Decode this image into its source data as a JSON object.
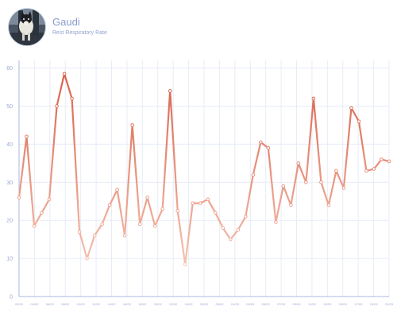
{
  "profile": {
    "name": "Gaudi",
    "subtitle": "Rest Respiratory Rate",
    "avatar_icon": "dog-photo"
  },
  "colors": {
    "low": "#f7c9b8",
    "high": "#d9634c",
    "grid": "#e7ecf7",
    "axis": "#aab8e0",
    "text": "#8a9bd0"
  },
  "chart_data": {
    "type": "line",
    "title": "",
    "xlabel": "",
    "ylabel": "",
    "ylim": [
      0,
      62
    ],
    "yticks": [
      0,
      10,
      20,
      30,
      40,
      50,
      60
    ],
    "grid": true,
    "x_tick_labels": [
      "02/02",
      "04/02",
      "06/02",
      "08/02",
      "10/02",
      "12/02",
      "14/02",
      "16/02",
      "18/02",
      "20/02",
      "22/02",
      "24/02",
      "26/02",
      "28/02",
      "01/03",
      "03/03",
      "05/03",
      "07/03",
      "09/03",
      "11/03",
      "13/03",
      "15/03",
      "17/03",
      "19/03",
      "21/03"
    ],
    "series": [
      {
        "name": "",
        "values": [
          26,
          42,
          18.5,
          22,
          25.5,
          50,
          58.5,
          52,
          17,
          10,
          16,
          19,
          24,
          28,
          16,
          45,
          19,
          26,
          18.5,
          23,
          54,
          22.5,
          8.5,
          24.5,
          24.5,
          25.5,
          22,
          18,
          15,
          17.5,
          21,
          32,
          40.5,
          39,
          19.5,
          29,
          24,
          35,
          30,
          52,
          30,
          24,
          33,
          28.5,
          49.5,
          46,
          33,
          33.5,
          36,
          35.5
        ]
      }
    ]
  }
}
